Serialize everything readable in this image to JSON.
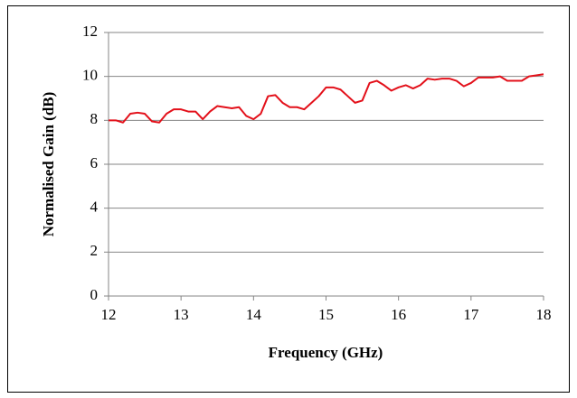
{
  "chart_data": {
    "type": "line",
    "xlabel": "Frequency (GHz)",
    "ylabel": "Normalised Gain (dB)",
    "x": [
      12.0,
      12.1,
      12.2,
      12.3,
      12.4,
      12.5,
      12.6,
      12.7,
      12.8,
      12.9,
      13.0,
      13.1,
      13.2,
      13.3,
      13.4,
      13.5,
      13.6,
      13.7,
      13.8,
      13.9,
      14.0,
      14.1,
      14.2,
      14.3,
      14.4,
      14.5,
      14.6,
      14.7,
      14.8,
      14.9,
      15.0,
      15.1,
      15.2,
      15.3,
      15.4,
      15.5,
      15.6,
      15.7,
      15.8,
      15.9,
      16.0,
      16.1,
      16.2,
      16.3,
      16.4,
      16.5,
      16.6,
      16.7,
      16.8,
      16.9,
      17.0,
      17.1,
      17.2,
      17.3,
      17.4,
      17.5,
      17.6,
      17.7,
      17.8,
      17.9,
      18.0
    ],
    "series": [
      {
        "color": "#e3101a",
        "values": [
          8.0,
          8.0,
          7.9,
          8.3,
          8.35,
          8.3,
          7.95,
          7.9,
          8.3,
          8.5,
          8.5,
          8.4,
          8.4,
          8.05,
          8.4,
          8.65,
          8.6,
          8.55,
          8.6,
          8.2,
          8.05,
          8.3,
          9.1,
          9.15,
          8.8,
          8.6,
          8.6,
          8.5,
          8.8,
          9.1,
          9.5,
          9.5,
          9.4,
          9.1,
          8.8,
          8.9,
          9.7,
          9.8,
          9.6,
          9.35,
          9.5,
          9.6,
          9.45,
          9.6,
          9.9,
          9.85,
          9.9,
          9.9,
          9.8,
          9.55,
          9.7,
          9.95,
          9.95,
          9.95,
          10.0,
          9.8,
          9.8,
          9.8,
          10.0,
          10.05,
          10.1
        ]
      }
    ],
    "xlim": [
      12,
      18
    ],
    "xticks": [
      12,
      13,
      14,
      15,
      16,
      17,
      18
    ],
    "ylim": [
      0,
      12
    ],
    "yticks": [
      0,
      2,
      4,
      6,
      8,
      10,
      12
    ],
    "grid": true
  }
}
